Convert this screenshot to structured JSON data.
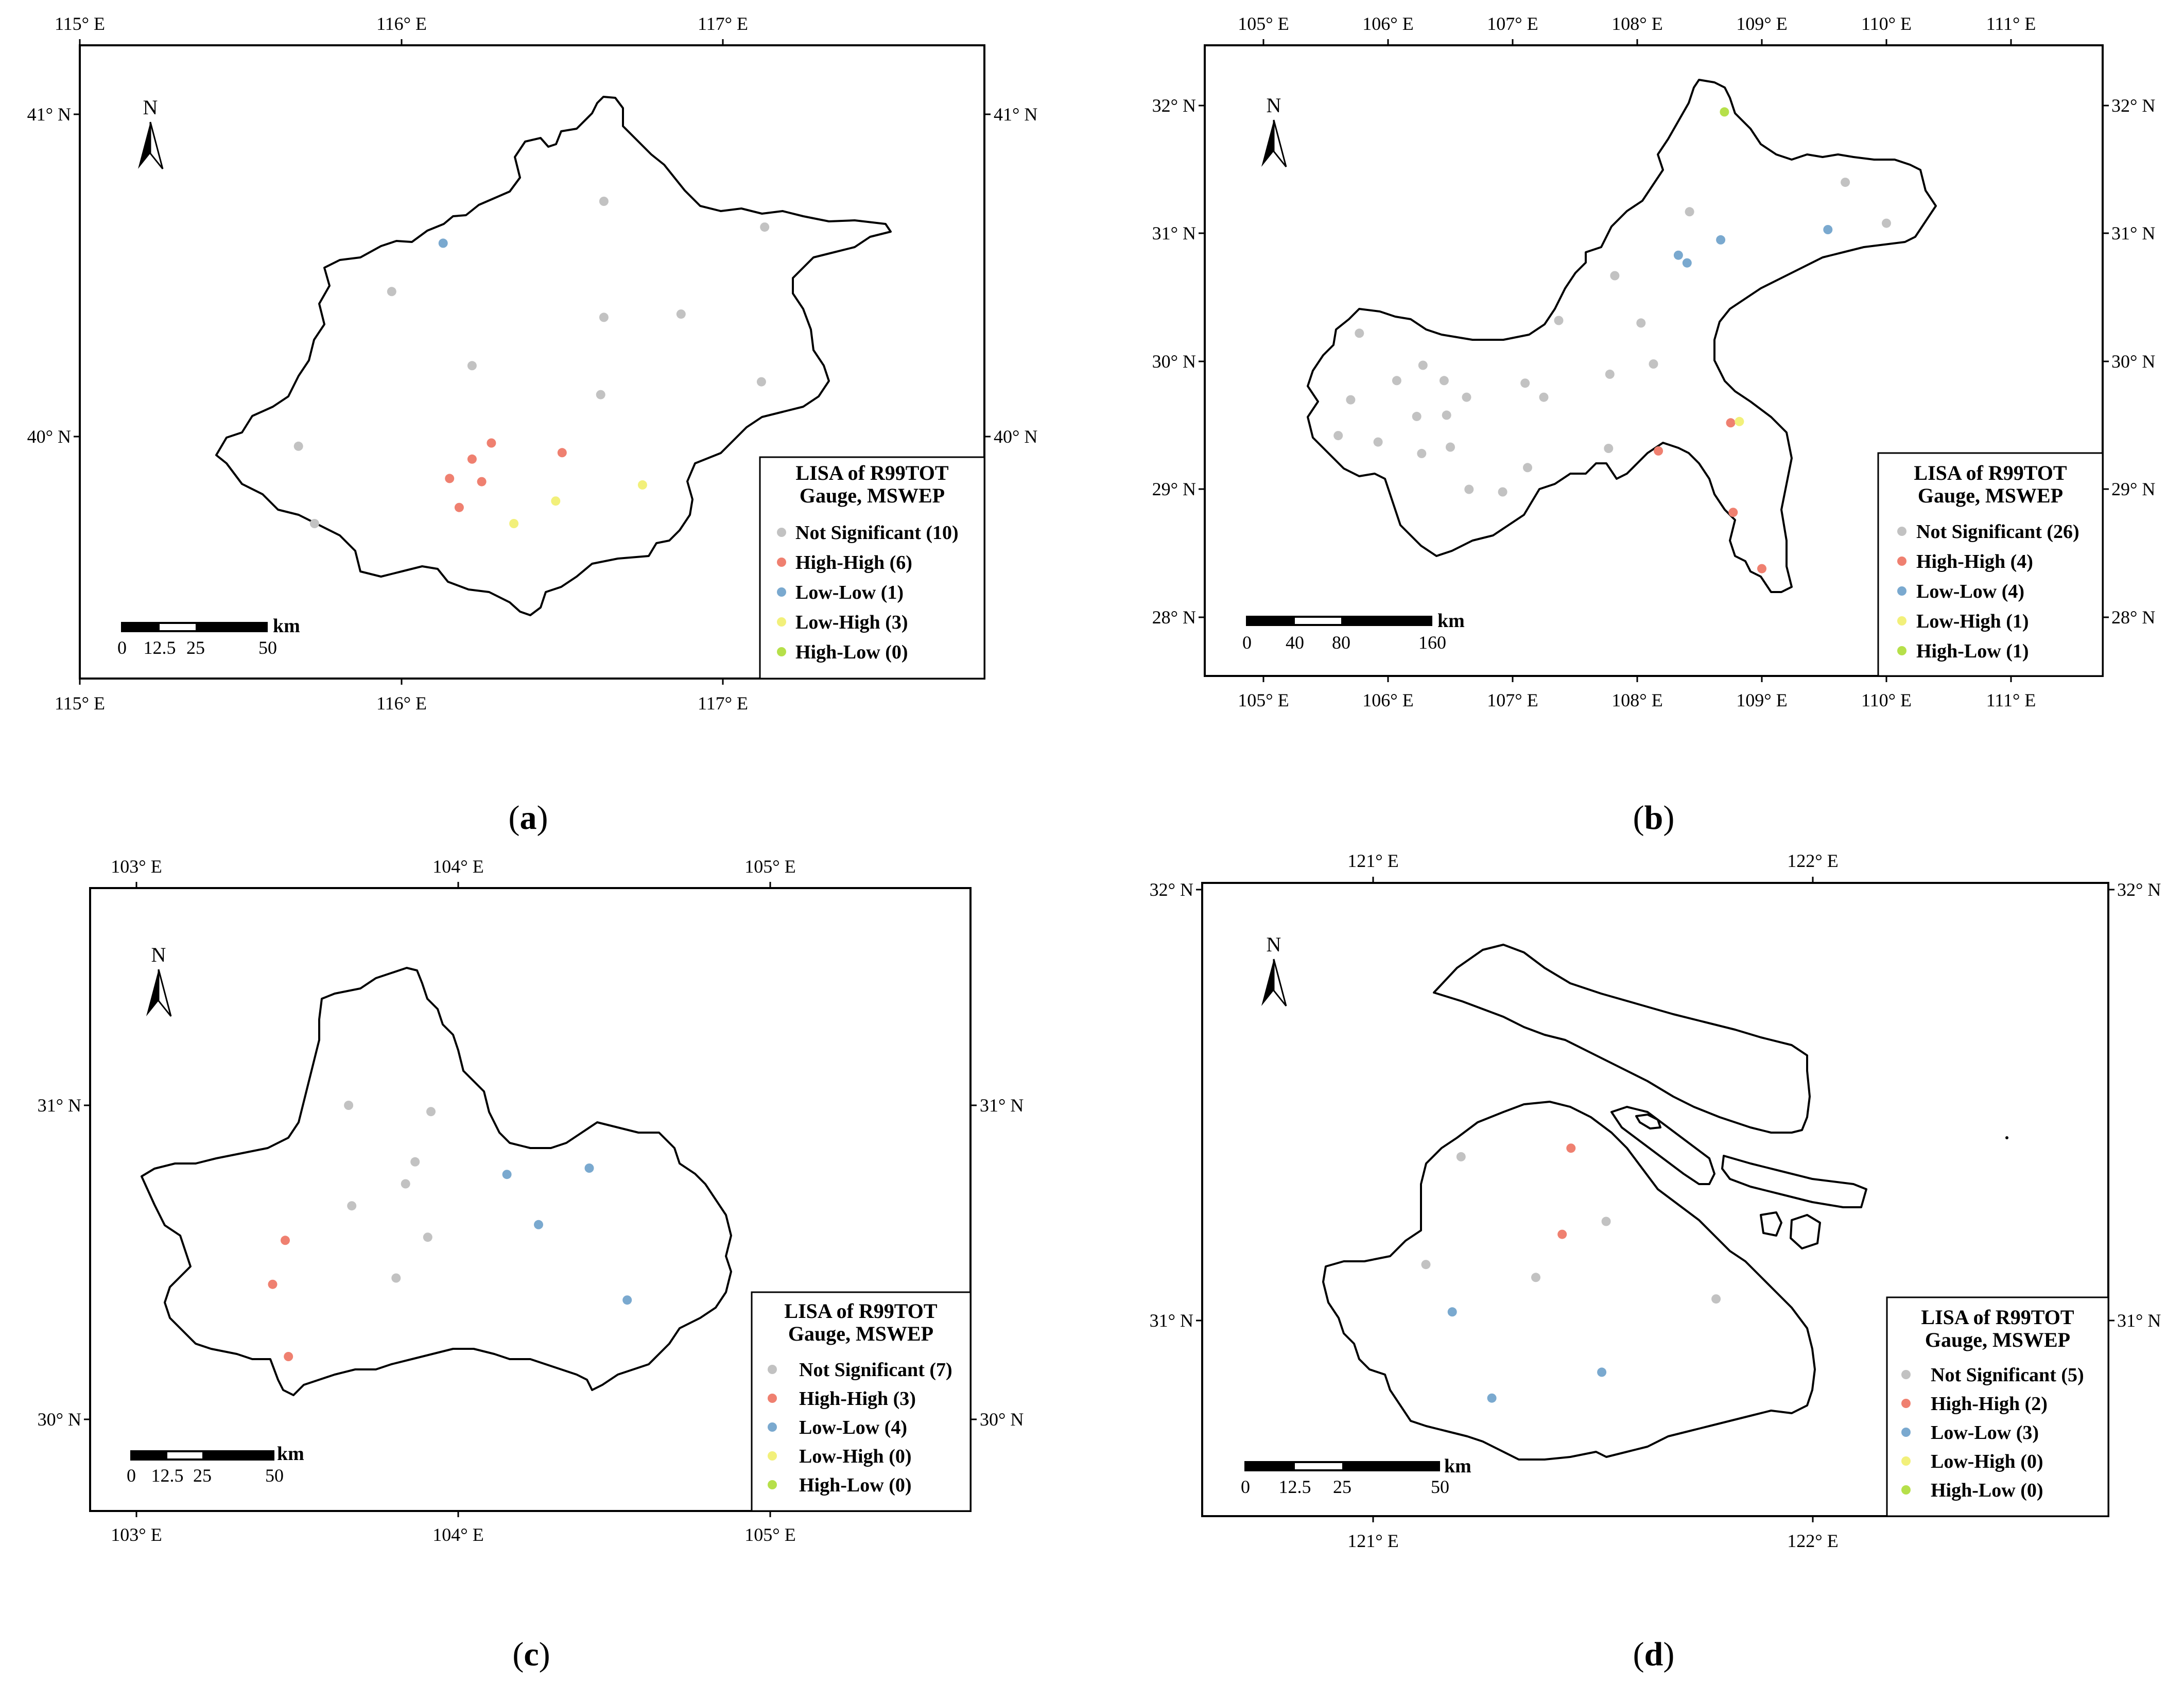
{
  "legend_common": {
    "title_line1": "LISA of R99TOT",
    "title_line2": "Gauge, MSWEP"
  },
  "category_colors": {
    "not_significant": "#c2c2c2",
    "high_high": "#ef8070",
    "low_low": "#7aa9cf",
    "low_high": "#f2f07a",
    "high_low": "#b6e04a"
  },
  "north_label": "N",
  "scale_unit": "km",
  "panels": {
    "a": {
      "label": "a",
      "ticks_top": [
        "115° E",
        "116° E",
        "117° E"
      ],
      "ticks_bottom": [
        "115° E",
        "116° E",
        "117° E"
      ],
      "ticks_left": [
        "41° N",
        "40° N"
      ],
      "ticks_right": [
        "41° N",
        "40° N"
      ],
      "legend": [
        "Not Significant (10)",
        "High-High (6)",
        "Low-Low (1)",
        "Low-High (3)",
        "High-Low (0)"
      ],
      "scale_labels": [
        "0",
        "12.5",
        "25",
        "50"
      ],
      "stations": [
        {
          "cat": "not_significant",
          "lon": 116.63,
          "lat": 40.73
        },
        {
          "cat": "not_significant",
          "lon": 117.13,
          "lat": 40.65
        },
        {
          "cat": "not_significant",
          "lon": 115.97,
          "lat": 40.45
        },
        {
          "cat": "not_significant",
          "lon": 116.63,
          "lat": 40.37
        },
        {
          "cat": "not_significant",
          "lon": 116.87,
          "lat": 40.38
        },
        {
          "cat": "not_significant",
          "lon": 116.22,
          "lat": 40.22
        },
        {
          "cat": "not_significant",
          "lon": 116.62,
          "lat": 40.13
        },
        {
          "cat": "not_significant",
          "lon": 117.12,
          "lat": 40.17
        },
        {
          "cat": "not_significant",
          "lon": 115.68,
          "lat": 39.97
        },
        {
          "cat": "not_significant",
          "lon": 115.73,
          "lat": 39.73
        },
        {
          "cat": "high_high",
          "lon": 116.28,
          "lat": 39.98
        },
        {
          "cat": "high_high",
          "lon": 116.22,
          "lat": 39.93
        },
        {
          "cat": "high_high",
          "lon": 116.15,
          "lat": 39.87
        },
        {
          "cat": "high_high",
          "lon": 116.25,
          "lat": 39.86
        },
        {
          "cat": "high_high",
          "lon": 116.18,
          "lat": 39.78
        },
        {
          "cat": "high_high",
          "lon": 116.5,
          "lat": 39.95
        },
        {
          "cat": "low_low",
          "lon": 116.13,
          "lat": 40.6
        },
        {
          "cat": "low_high",
          "lon": 116.48,
          "lat": 39.8
        },
        {
          "cat": "low_high",
          "lon": 116.35,
          "lat": 39.73
        },
        {
          "cat": "low_high",
          "lon": 116.75,
          "lat": 39.85
        }
      ]
    },
    "b": {
      "label": "b",
      "ticks_top": [
        "105° E",
        "106° E",
        "107° E",
        "108° E",
        "109° E",
        "110° E",
        "111° E"
      ],
      "ticks_bottom": [
        "105° E",
        "106° E",
        "107° E",
        "108° E",
        "109° E",
        "110° E",
        "111° E"
      ],
      "ticks_left": [
        "32° N",
        "31° N",
        "30° N",
        "29° N",
        "28° N"
      ],
      "ticks_right": [
        "32° N",
        "31° N",
        "30° N",
        "29° N",
        "28° N"
      ],
      "legend": [
        "Not Significant (26)",
        "High-High (4)",
        "Low-Low (4)",
        "Low-High (1)",
        "High-Low (1)"
      ],
      "scale_labels": [
        "0",
        "40",
        "80",
        "160"
      ],
      "stations": [
        {
          "cat": "not_significant",
          "lon": 109.67,
          "lat": 31.4
        },
        {
          "cat": "not_significant",
          "lon": 110.0,
          "lat": 31.08
        },
        {
          "cat": "not_significant",
          "lon": 108.42,
          "lat": 31.17
        },
        {
          "cat": "not_significant",
          "lon": 107.82,
          "lat": 30.67
        },
        {
          "cat": "not_significant",
          "lon": 107.37,
          "lat": 30.32
        },
        {
          "cat": "not_significant",
          "lon": 108.03,
          "lat": 30.3
        },
        {
          "cat": "not_significant",
          "lon": 105.77,
          "lat": 30.22
        },
        {
          "cat": "not_significant",
          "lon": 106.28,
          "lat": 29.97
        },
        {
          "cat": "not_significant",
          "lon": 107.78,
          "lat": 29.9
        },
        {
          "cat": "not_significant",
          "lon": 108.13,
          "lat": 29.98
        },
        {
          "cat": "not_significant",
          "lon": 106.07,
          "lat": 29.85
        },
        {
          "cat": "not_significant",
          "lon": 106.45,
          "lat": 29.85
        },
        {
          "cat": "not_significant",
          "lon": 107.1,
          "lat": 29.83
        },
        {
          "cat": "not_significant",
          "lon": 105.7,
          "lat": 29.7
        },
        {
          "cat": "not_significant",
          "lon": 106.63,
          "lat": 29.72
        },
        {
          "cat": "not_significant",
          "lon": 107.25,
          "lat": 29.72
        },
        {
          "cat": "not_significant",
          "lon": 106.23,
          "lat": 29.57
        },
        {
          "cat": "not_significant",
          "lon": 106.47,
          "lat": 29.58
        },
        {
          "cat": "not_significant",
          "lon": 105.6,
          "lat": 29.42
        },
        {
          "cat": "not_significant",
          "lon": 105.92,
          "lat": 29.37
        },
        {
          "cat": "not_significant",
          "lon": 106.27,
          "lat": 29.28
        },
        {
          "cat": "not_significant",
          "lon": 106.5,
          "lat": 29.33
        },
        {
          "cat": "not_significant",
          "lon": 107.77,
          "lat": 29.32
        },
        {
          "cat": "not_significant",
          "lon": 107.12,
          "lat": 29.17
        },
        {
          "cat": "not_significant",
          "lon": 106.65,
          "lat": 29.0
        },
        {
          "cat": "not_significant",
          "lon": 106.92,
          "lat": 28.98
        },
        {
          "cat": "high_high",
          "lon": 108.17,
          "lat": 29.3
        },
        {
          "cat": "high_high",
          "lon": 108.77,
          "lat": 28.82
        },
        {
          "cat": "high_high",
          "lon": 109.0,
          "lat": 28.38
        },
        {
          "cat": "high_high",
          "lon": 108.75,
          "lat": 29.52
        },
        {
          "cat": "low_low",
          "lon": 108.33,
          "lat": 30.83
        },
        {
          "cat": "low_low",
          "lon": 108.4,
          "lat": 30.77
        },
        {
          "cat": "low_low",
          "lon": 108.67,
          "lat": 30.95
        },
        {
          "cat": "low_low",
          "lon": 109.53,
          "lat": 31.03
        },
        {
          "cat": "low_high",
          "lon": 108.82,
          "lat": 29.53
        },
        {
          "cat": "high_low",
          "lon": 108.7,
          "lat": 31.95
        }
      ]
    },
    "c": {
      "label": "c",
      "ticks_top": [
        "103° E",
        "104° E",
        "105° E"
      ],
      "ticks_bottom": [
        "103° E",
        "104° E",
        "105° E"
      ],
      "ticks_left": [
        "31° N",
        "30° N"
      ],
      "ticks_right": [
        "31° N",
        "30° N"
      ],
      "legend": [
        "Not Significant (7)",
        "High-High (3)",
        "Low-Low (4)",
        "Low-High (0)",
        "High-Low (0)"
      ],
      "scale_labels": [
        "0",
        "12.5",
        "25",
        "50"
      ],
      "stations": [
        {
          "cat": "not_significant",
          "lon": 103.67,
          "lat": 31.0
        },
        {
          "cat": "not_significant",
          "lon": 103.93,
          "lat": 30.98
        },
        {
          "cat": "not_significant",
          "lon": 103.88,
          "lat": 30.82
        },
        {
          "cat": "not_significant",
          "lon": 103.85,
          "lat": 30.75
        },
        {
          "cat": "not_significant",
          "lon": 103.68,
          "lat": 30.68
        },
        {
          "cat": "not_significant",
          "lon": 103.92,
          "lat": 30.58
        },
        {
          "cat": "not_significant",
          "lon": 103.82,
          "lat": 30.45
        },
        {
          "cat": "high_high",
          "lon": 103.47,
          "lat": 30.57
        },
        {
          "cat": "high_high",
          "lon": 103.43,
          "lat": 30.43
        },
        {
          "cat": "high_high",
          "lon": 103.48,
          "lat": 30.2
        },
        {
          "cat": "low_low",
          "lon": 104.17,
          "lat": 30.78
        },
        {
          "cat": "low_low",
          "lon": 104.43,
          "lat": 30.8
        },
        {
          "cat": "low_low",
          "lon": 104.27,
          "lat": 30.62
        },
        {
          "cat": "low_low",
          "lon": 104.55,
          "lat": 30.38
        }
      ]
    },
    "d": {
      "label": "d",
      "ticks_top": [
        "121° E",
        "122° E"
      ],
      "ticks_bottom": [
        "121° E",
        "122° E"
      ],
      "ticks_left": [
        "32° N",
        "31° N"
      ],
      "ticks_right": [
        "32° N",
        "31° N"
      ],
      "legend": [
        "Not Significant (5)",
        "High-High (2)",
        "Low-Low (3)",
        "Low-High (0)",
        "High-Low (0)"
      ],
      "scale_labels": [
        "0",
        "12.5",
        "25",
        "50"
      ],
      "stations": [
        {
          "cat": "not_significant",
          "lon": 121.2,
          "lat": 31.38
        },
        {
          "cat": "not_significant",
          "lon": 121.53,
          "lat": 31.23
        },
        {
          "cat": "not_significant",
          "lon": 121.12,
          "lat": 31.13
        },
        {
          "cat": "not_significant",
          "lon": 121.37,
          "lat": 31.1
        },
        {
          "cat": "not_significant",
          "lon": 121.78,
          "lat": 31.05
        },
        {
          "cat": "high_high",
          "lon": 121.45,
          "lat": 31.4
        },
        {
          "cat": "high_high",
          "lon": 121.43,
          "lat": 31.2
        },
        {
          "cat": "low_low",
          "lon": 121.18,
          "lat": 31.02
        },
        {
          "cat": "low_low",
          "lon": 121.52,
          "lat": 30.88
        },
        {
          "cat": "low_low",
          "lon": 121.27,
          "lat": 30.82
        }
      ]
    }
  }
}
